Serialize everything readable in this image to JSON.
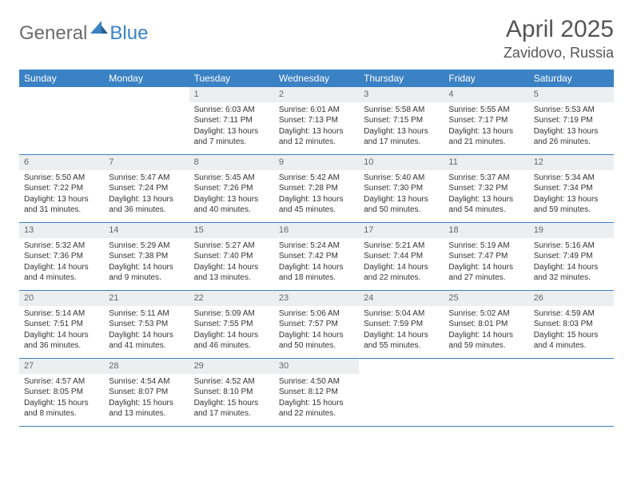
{
  "logo": {
    "text1": "General",
    "text2": "Blue"
  },
  "title": "April 2025",
  "location": "Zavidovo, Russia",
  "colors": {
    "header_bg": "#3b82c4",
    "daynum_bg": "#eceef0",
    "text": "#333333",
    "title_color": "#555555",
    "logo_gray": "#6b6b6b",
    "logo_blue": "#3b82c4",
    "border": "#3b82c4"
  },
  "day_names": [
    "Sunday",
    "Monday",
    "Tuesday",
    "Wednesday",
    "Thursday",
    "Friday",
    "Saturday"
  ],
  "weeks": [
    [
      null,
      null,
      {
        "n": "1",
        "sr": "6:03 AM",
        "ss": "7:11 PM",
        "dl": "13 hours and 7 minutes."
      },
      {
        "n": "2",
        "sr": "6:01 AM",
        "ss": "7:13 PM",
        "dl": "13 hours and 12 minutes."
      },
      {
        "n": "3",
        "sr": "5:58 AM",
        "ss": "7:15 PM",
        "dl": "13 hours and 17 minutes."
      },
      {
        "n": "4",
        "sr": "5:55 AM",
        "ss": "7:17 PM",
        "dl": "13 hours and 21 minutes."
      },
      {
        "n": "5",
        "sr": "5:53 AM",
        "ss": "7:19 PM",
        "dl": "13 hours and 26 minutes."
      }
    ],
    [
      {
        "n": "6",
        "sr": "5:50 AM",
        "ss": "7:22 PM",
        "dl": "13 hours and 31 minutes."
      },
      {
        "n": "7",
        "sr": "5:47 AM",
        "ss": "7:24 PM",
        "dl": "13 hours and 36 minutes."
      },
      {
        "n": "8",
        "sr": "5:45 AM",
        "ss": "7:26 PM",
        "dl": "13 hours and 40 minutes."
      },
      {
        "n": "9",
        "sr": "5:42 AM",
        "ss": "7:28 PM",
        "dl": "13 hours and 45 minutes."
      },
      {
        "n": "10",
        "sr": "5:40 AM",
        "ss": "7:30 PM",
        "dl": "13 hours and 50 minutes."
      },
      {
        "n": "11",
        "sr": "5:37 AM",
        "ss": "7:32 PM",
        "dl": "13 hours and 54 minutes."
      },
      {
        "n": "12",
        "sr": "5:34 AM",
        "ss": "7:34 PM",
        "dl": "13 hours and 59 minutes."
      }
    ],
    [
      {
        "n": "13",
        "sr": "5:32 AM",
        "ss": "7:36 PM",
        "dl": "14 hours and 4 minutes."
      },
      {
        "n": "14",
        "sr": "5:29 AM",
        "ss": "7:38 PM",
        "dl": "14 hours and 9 minutes."
      },
      {
        "n": "15",
        "sr": "5:27 AM",
        "ss": "7:40 PM",
        "dl": "14 hours and 13 minutes."
      },
      {
        "n": "16",
        "sr": "5:24 AM",
        "ss": "7:42 PM",
        "dl": "14 hours and 18 minutes."
      },
      {
        "n": "17",
        "sr": "5:21 AM",
        "ss": "7:44 PM",
        "dl": "14 hours and 22 minutes."
      },
      {
        "n": "18",
        "sr": "5:19 AM",
        "ss": "7:47 PM",
        "dl": "14 hours and 27 minutes."
      },
      {
        "n": "19",
        "sr": "5:16 AM",
        "ss": "7:49 PM",
        "dl": "14 hours and 32 minutes."
      }
    ],
    [
      {
        "n": "20",
        "sr": "5:14 AM",
        "ss": "7:51 PM",
        "dl": "14 hours and 36 minutes."
      },
      {
        "n": "21",
        "sr": "5:11 AM",
        "ss": "7:53 PM",
        "dl": "14 hours and 41 minutes."
      },
      {
        "n": "22",
        "sr": "5:09 AM",
        "ss": "7:55 PM",
        "dl": "14 hours and 46 minutes."
      },
      {
        "n": "23",
        "sr": "5:06 AM",
        "ss": "7:57 PM",
        "dl": "14 hours and 50 minutes."
      },
      {
        "n": "24",
        "sr": "5:04 AM",
        "ss": "7:59 PM",
        "dl": "14 hours and 55 minutes."
      },
      {
        "n": "25",
        "sr": "5:02 AM",
        "ss": "8:01 PM",
        "dl": "14 hours and 59 minutes."
      },
      {
        "n": "26",
        "sr": "4:59 AM",
        "ss": "8:03 PM",
        "dl": "15 hours and 4 minutes."
      }
    ],
    [
      {
        "n": "27",
        "sr": "4:57 AM",
        "ss": "8:05 PM",
        "dl": "15 hours and 8 minutes."
      },
      {
        "n": "28",
        "sr": "4:54 AM",
        "ss": "8:07 PM",
        "dl": "15 hours and 13 minutes."
      },
      {
        "n": "29",
        "sr": "4:52 AM",
        "ss": "8:10 PM",
        "dl": "15 hours and 17 minutes."
      },
      {
        "n": "30",
        "sr": "4:50 AM",
        "ss": "8:12 PM",
        "dl": "15 hours and 22 minutes."
      },
      null,
      null,
      null
    ]
  ],
  "labels": {
    "sunrise": "Sunrise: ",
    "sunset": "Sunset: ",
    "daylight": "Daylight: "
  }
}
